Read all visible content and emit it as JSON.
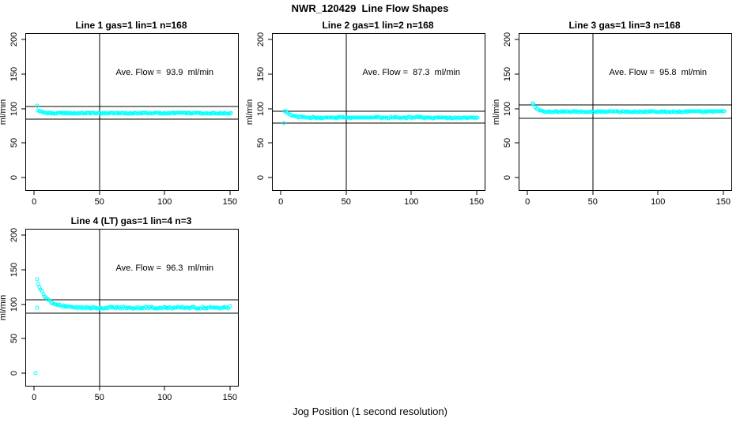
{
  "figure": {
    "title": "NWR_120429  Line Flow Shapes",
    "x_axis_label": "Jog Position (1 second resolution)"
  },
  "chart_data": {
    "type": "scatter",
    "title": "NWR_120429  Line Flow Shapes",
    "xlabel": "Jog Position (1 second resolution)",
    "ylabel": "ml/min",
    "point_color": "#00FFFF",
    "axis_color": "#000000",
    "grid": false,
    "x_range": [
      -6.2,
      156.2
    ],
    "y_range": [
      -18.4,
      208.4
    ],
    "x_ticks": [
      0,
      50,
      100,
      150
    ],
    "y_ticks": [
      0,
      50,
      100,
      150,
      200
    ],
    "vline_x": 50,
    "annotation_anchor": [
      100,
      152
    ],
    "panels": [
      {
        "title": "Line 1 gas=1 lin=1 n=168",
        "annotation": "Ave. Flow =  93.9  ml/min",
        "ave_flow": 93.9,
        "n": 168,
        "hlines": [
          103.3,
          84.5
        ],
        "extra_points": [
          [
            2,
            104
          ]
        ],
        "series": {
          "x_start": 3,
          "x_end": 151,
          "x_step": 1,
          "settle": 93.3,
          "amplitude": 4.5,
          "tau": 3,
          "noise": 1.0,
          "seed": 1
        }
      },
      {
        "title": "Line 2 gas=1 lin=2 n=168",
        "annotation": "Ave. Flow =  87.3  ml/min",
        "ave_flow": 87.3,
        "n": 168,
        "hlines": [
          96.0,
          78.6
        ],
        "extra_points": [
          [
            2,
            79
          ]
        ],
        "series": {
          "x_start": 3,
          "x_end": 151,
          "x_step": 1,
          "settle": 86.9,
          "amplitude": 10,
          "tau": 4.5,
          "noise": 0.8,
          "seed": 2
        }
      },
      {
        "title": "Line 3 gas=1 lin=3 n=168",
        "annotation": "Ave. Flow =  95.8  ml/min",
        "ave_flow": 95.8,
        "n": 168,
        "hlines": [
          105.4,
          86.2
        ],
        "extra_points": [
          [
            4,
            107.5
          ]
        ],
        "series": {
          "x_start": 4,
          "x_end": 151,
          "x_step": 1,
          "settle": 95.4,
          "amplitude": 12,
          "tau": 3.2,
          "noise": 0.8,
          "seed": 3
        }
      },
      {
        "title": "Line 4 (LT) gas=1 lin=4 n=3",
        "annotation": "Ave. Flow =  96.3  ml/min",
        "ave_flow": 96.3,
        "n": 3,
        "hlines": [
          105.9,
          86.7
        ],
        "extra_points": [
          [
            1,
            0
          ],
          [
            2,
            95.5
          ],
          [
            150,
            97
          ]
        ],
        "series": {
          "x_start": 2,
          "x_end": 149,
          "x_step": 1,
          "settle": 94.8,
          "amplitude": 41,
          "tau": 7,
          "noise": 1.4,
          "seed": 4
        }
      }
    ]
  }
}
